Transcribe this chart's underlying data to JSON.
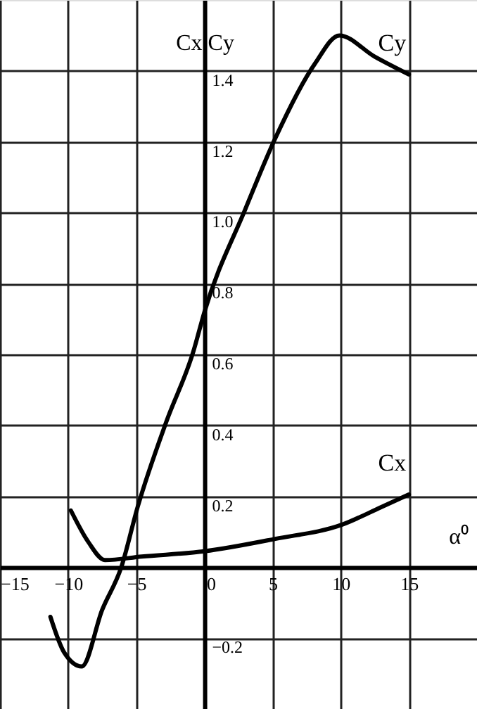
{
  "chart_data": {
    "type": "line",
    "xlabel": "α⁰",
    "ylabel": "Cx  Cy",
    "xlim": [
      -15,
      20
    ],
    "ylim": [
      -0.4,
      1.6
    ],
    "xticks": [
      -15,
      -10,
      -5,
      0,
      5,
      10,
      15
    ],
    "yticks": [
      -0.2,
      {
        "value": 0,
        "label": null
      },
      0.2,
      0.4,
      0.6,
      0.8,
      {
        "value": 1.0,
        "label": "1.0"
      },
      1.2,
      1.4
    ],
    "grid": true,
    "marker": "none",
    "line_style": "solid",
    "series": [
      {
        "name": "Cy",
        "color": "#000000",
        "x": [
          -11.3,
          -10.3,
          -9.0,
          -7.5,
          -6.1,
          -4.9,
          -2.8,
          -0.8,
          0,
          3.0,
          5.2,
          8.1,
          9.9,
          12.5,
          15
        ],
        "values": [
          -0.14,
          -0.24,
          -0.28,
          -0.12,
          0.0,
          0.17,
          0.41,
          0.61,
          0.72,
          1.01,
          1.21,
          1.42,
          1.5,
          1.44,
          1.39
        ]
      },
      {
        "name": "Cx",
        "color": "#000000",
        "x": [
          -9.8,
          -8.5,
          -7.3,
          -4.6,
          0,
          5.2,
          10.1,
          13,
          15
        ],
        "values": [
          0.16,
          0.07,
          0.02,
          0.03,
          0.045,
          0.08,
          0.12,
          0.17,
          0.205
        ]
      }
    ]
  }
}
